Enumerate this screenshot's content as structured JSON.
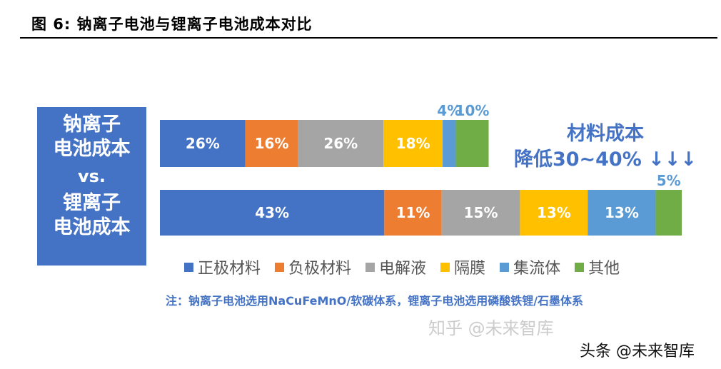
{
  "title": "图 6:  钠离子电池与锂离子电池成本对比",
  "left_box": {
    "line1": "钠离子",
    "line2": "电池成本",
    "vs": "vs.",
    "line3": "锂离子",
    "line4": "电池成本"
  },
  "callout": {
    "line1": "材料成本",
    "line2": "降低30~40%  ↓↓↓"
  },
  "note": "注：钠离子电池选用NaCuFeMnO/软碳体系，锂离子电池选用磷酸铁锂/石墨体系",
  "watermark": {
    "zhihu": "知乎 @未来智库",
    "toutiao": "头条 @未来智库"
  },
  "chart_data": {
    "type": "bar",
    "orientation": "horizontal",
    "stacked": true,
    "categories": [
      "钠离子电池成本",
      "锂离子电池成本"
    ],
    "relative_total": [
      0.63,
      1.0
    ],
    "series": [
      {
        "name": "正极材料",
        "color": "#4472C4",
        "values": [
          26,
          43
        ],
        "labels": [
          "26%",
          "43%"
        ]
      },
      {
        "name": "负极材料",
        "color": "#ED7D31",
        "values": [
          16,
          11
        ],
        "labels": [
          "16%",
          "11%"
        ]
      },
      {
        "name": "电解液",
        "color": "#A5A5A5",
        "values": [
          26,
          15
        ],
        "labels": [
          "26%",
          "15%"
        ]
      },
      {
        "name": "隔膜",
        "color": "#FFC000",
        "values": [
          18,
          13
        ],
        "labels": [
          "18%",
          "13%"
        ]
      },
      {
        "name": "集流体",
        "color": "#5B9BD5",
        "values": [
          4,
          13
        ],
        "labels": [
          "4%",
          "13%"
        ]
      },
      {
        "name": "其他",
        "color": "#70AD47",
        "values": [
          10,
          5
        ],
        "labels": [
          "10%",
          "5%"
        ]
      }
    ],
    "legend": "bottom",
    "grid": false
  }
}
